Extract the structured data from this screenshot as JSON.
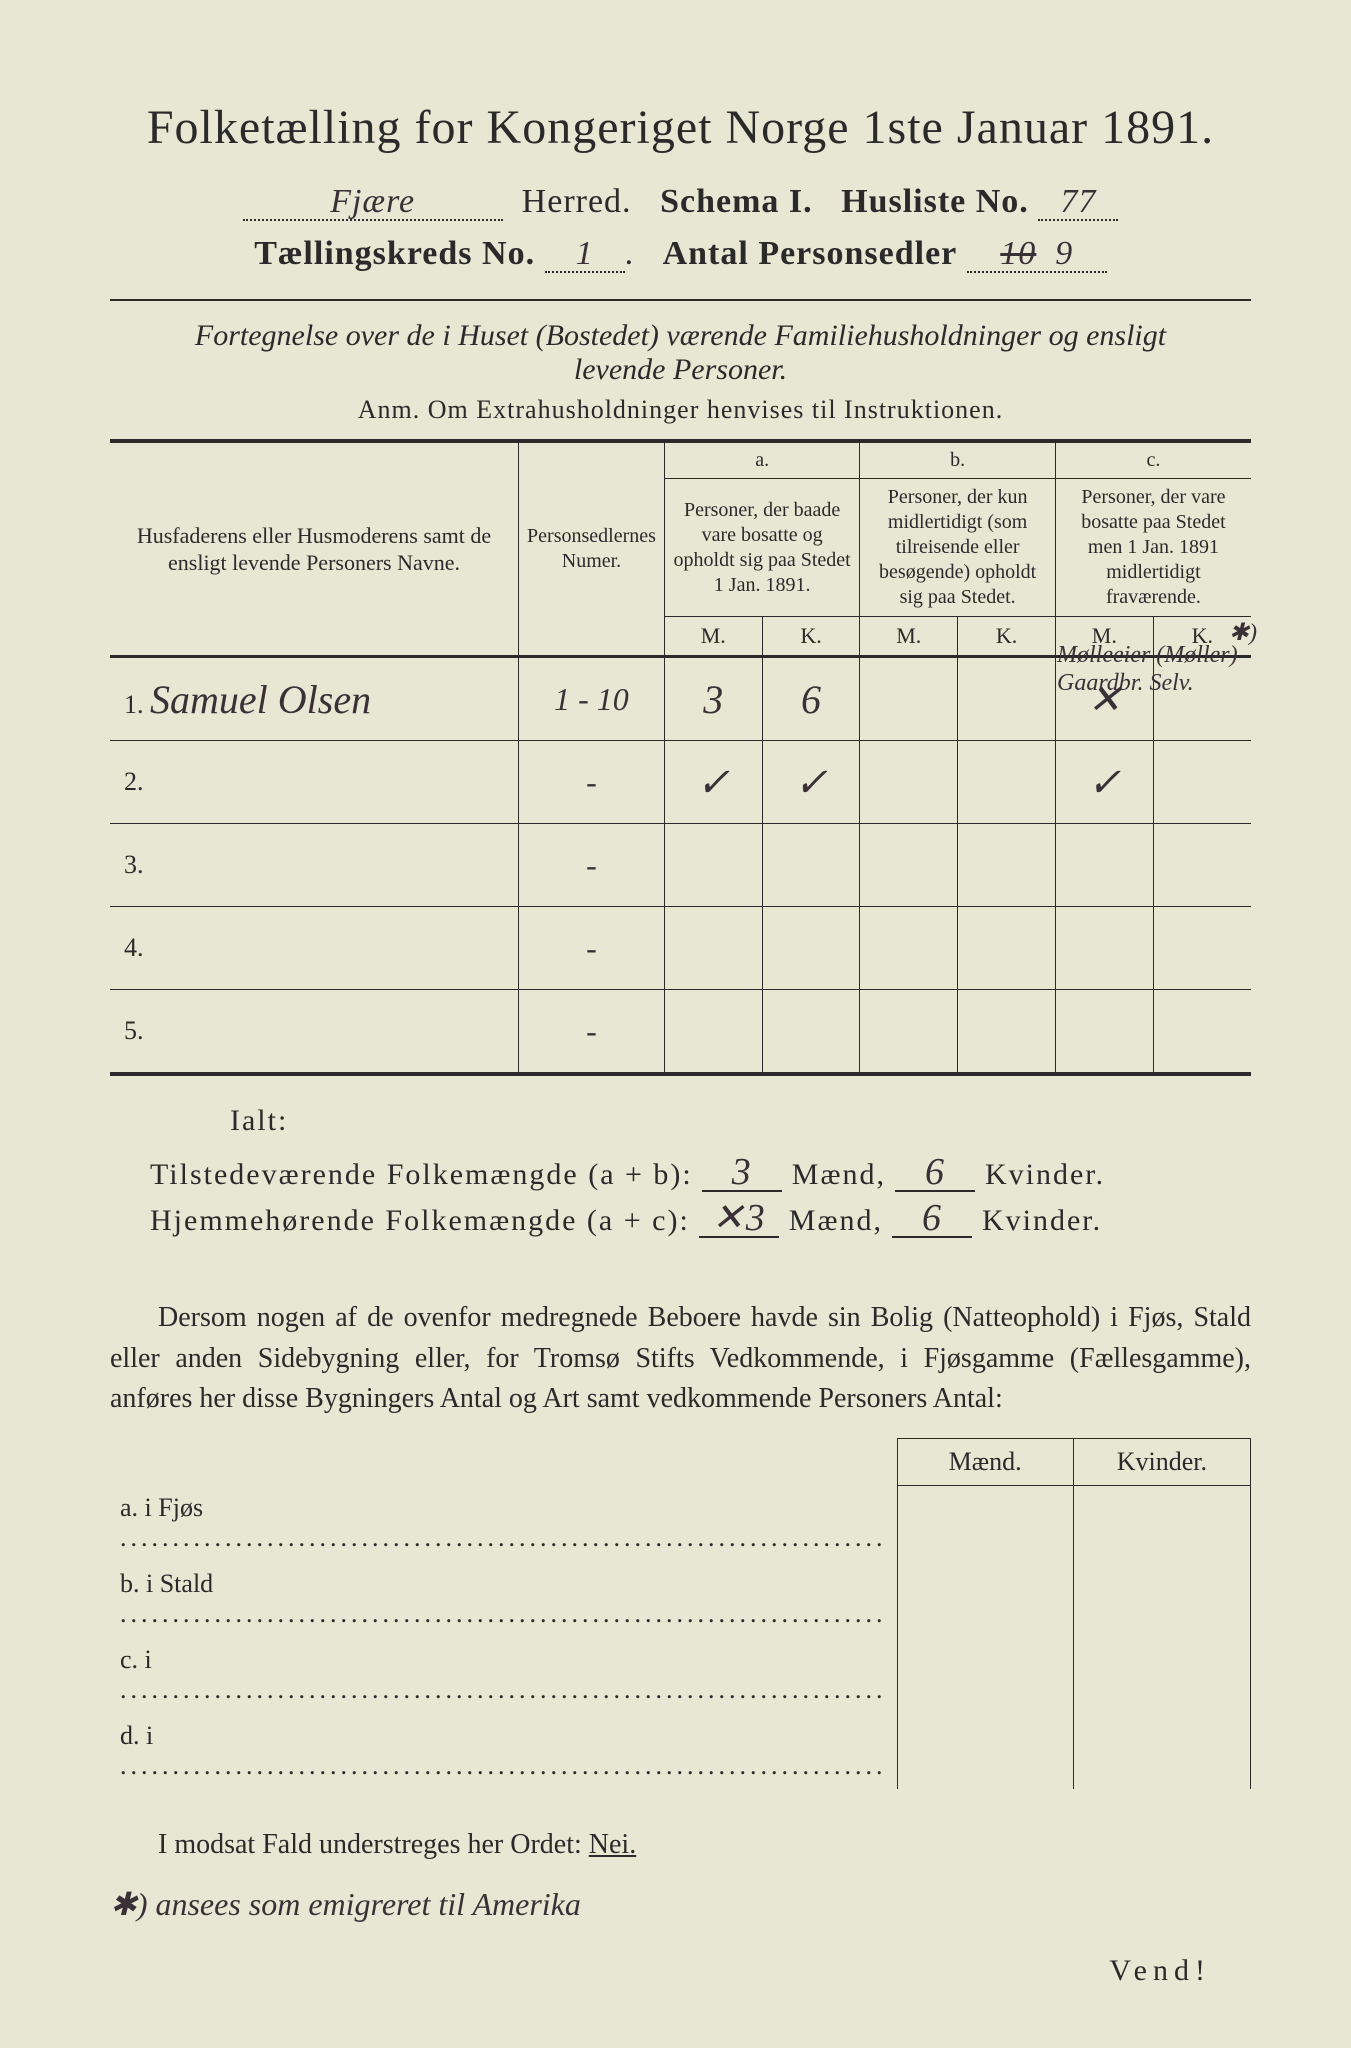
{
  "title": "Folketælling for Kongeriget Norge 1ste Januar 1891.",
  "header": {
    "herred_value": "Fjære",
    "herred_label": "Herred.",
    "schema_label": "Schema I.",
    "husliste_label": "Husliste No.",
    "husliste_value": "77",
    "kreds_label": "Tællingskreds No.",
    "kreds_value": "1",
    "antal_label": "Antal Personsedler",
    "antal_struck": "10",
    "antal_value": "9"
  },
  "subtitle_line1": "Fortegnelse over de i Huset (Bostedet) værende Familiehusholdninger og ensligt",
  "subtitle_line2": "levende Personer.",
  "anm": "Anm.  Om Extrahusholdninger henvises til Instruktionen.",
  "table": {
    "col_names_header": "Husfaderens eller Husmoderens samt de ensligt levende Personers Navne.",
    "col_num_header": "Personsedlernes Numer.",
    "col_a_label": "a.",
    "col_a_text": "Personer, der baade vare bosatte og opholdt sig paa Stedet 1 Jan. 1891.",
    "col_b_label": "b.",
    "col_b_text": "Personer, der kun midlertidigt (som tilreisende eller besøgende) opholdt sig paa Stedet.",
    "col_c_label": "c.",
    "col_c_text": "Personer, der vare bosatte paa Stedet men 1 Jan. 1891 midlertidigt fraværende.",
    "mk_m": "M.",
    "mk_k": "K.",
    "rows": [
      {
        "num": "1.",
        "name": "Samuel Olsen",
        "pers_num": "1 - 10",
        "a_m": "3",
        "a_k": "6",
        "b_m": "",
        "b_k": "",
        "c_m": "✕",
        "c_k": ""
      },
      {
        "num": "2.",
        "name": "",
        "pers_num": "-",
        "a_m": "✓",
        "a_k": "✓",
        "b_m": "",
        "b_k": "",
        "c_m": "✓",
        "c_k": ""
      },
      {
        "num": "3.",
        "name": "",
        "pers_num": "-",
        "a_m": "",
        "a_k": "",
        "b_m": "",
        "b_k": "",
        "c_m": "",
        "c_k": ""
      },
      {
        "num": "4.",
        "name": "",
        "pers_num": "-",
        "a_m": "",
        "a_k": "",
        "b_m": "",
        "b_k": "",
        "c_m": "",
        "c_k": ""
      },
      {
        "num": "5.",
        "name": "",
        "pers_num": "-",
        "a_m": "",
        "a_k": "",
        "b_m": "",
        "b_k": "",
        "c_m": "",
        "c_k": ""
      }
    ],
    "margin_note_star": "✱)",
    "margin_note_1": "Mølleeier (Møller)",
    "margin_note_2": "Gaardbr. Selv."
  },
  "totals": {
    "ialt": "Ialt:",
    "line_ab_label": "Tilstedeværende Folkemængde (a + b):",
    "line_ac_label": "Hjemmehørende Folkemængde (a + c):",
    "maend": "Mænd,",
    "kvinder": "Kvinder.",
    "ab_m": "3",
    "ab_k": "6",
    "ac_m_struck": "✕3",
    "ac_k": "6"
  },
  "para": "Dersom nogen af de ovenfor medregnede Beboere havde sin Bolig (Natteophold) i Fjøs, Stald eller anden Sidebygning eller, for Tromsø Stifts Vedkommende, i Fjøsgamme (Fællesgamme), anføres her disse Bygningers Antal og Art samt vedkommende Personers Antal:",
  "byg": {
    "maend": "Mænd.",
    "kvinder": "Kvinder.",
    "rows": [
      {
        "label": "a.  i     Fjøs"
      },
      {
        "label": "b.  i     Stald"
      },
      {
        "label": "c.  i"
      },
      {
        "label": "d.  i"
      }
    ]
  },
  "nei_line": "I modsat Fald understreges her Ordet:",
  "nei_word": "Nei.",
  "footnote": "✱) ansees som emigreret til Amerika",
  "vend": "Vend!",
  "colors": {
    "paper": "#e8e7d4",
    "ink": "#2a2a2a",
    "handwriting": "#3a3036",
    "purple_ink": "#6a4d8a"
  }
}
